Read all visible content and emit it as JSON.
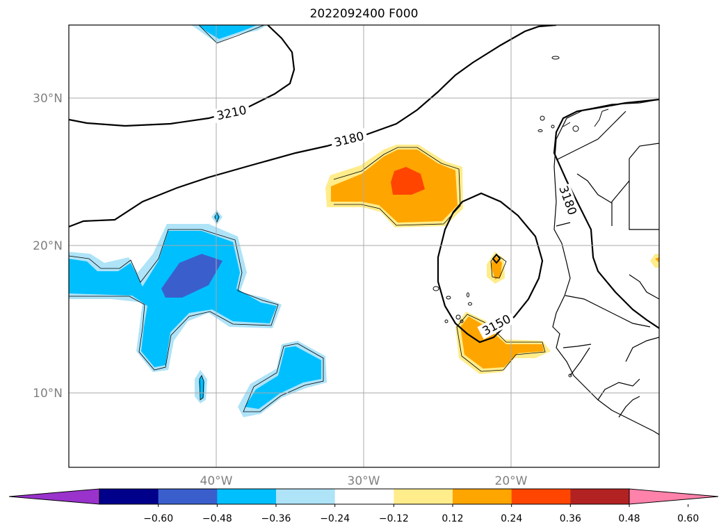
{
  "title": "2022092400 F000",
  "map": {
    "lat_ticks": [
      "30°N",
      "20°N",
      "10°N"
    ],
    "lon_ticks": [
      "40°W",
      "30°W",
      "20°W"
    ],
    "contour_labels": [
      "3210",
      "3180",
      "3180",
      "3150"
    ]
  },
  "colorbar": {
    "ticks": [
      "−0.60",
      "−0.48",
      "−0.36",
      "−0.24",
      "−0.12",
      "0.12",
      "0.24",
      "0.36",
      "0.48",
      "0.60"
    ],
    "colors": [
      "#9933cc",
      "#00008b",
      "#3a5fcd",
      "#00bfff",
      "#aee3f8",
      "#ffffff",
      "#ffec8b",
      "#ffa500",
      "#ff4500",
      "#b22222",
      "#ff82ab"
    ]
  }
}
